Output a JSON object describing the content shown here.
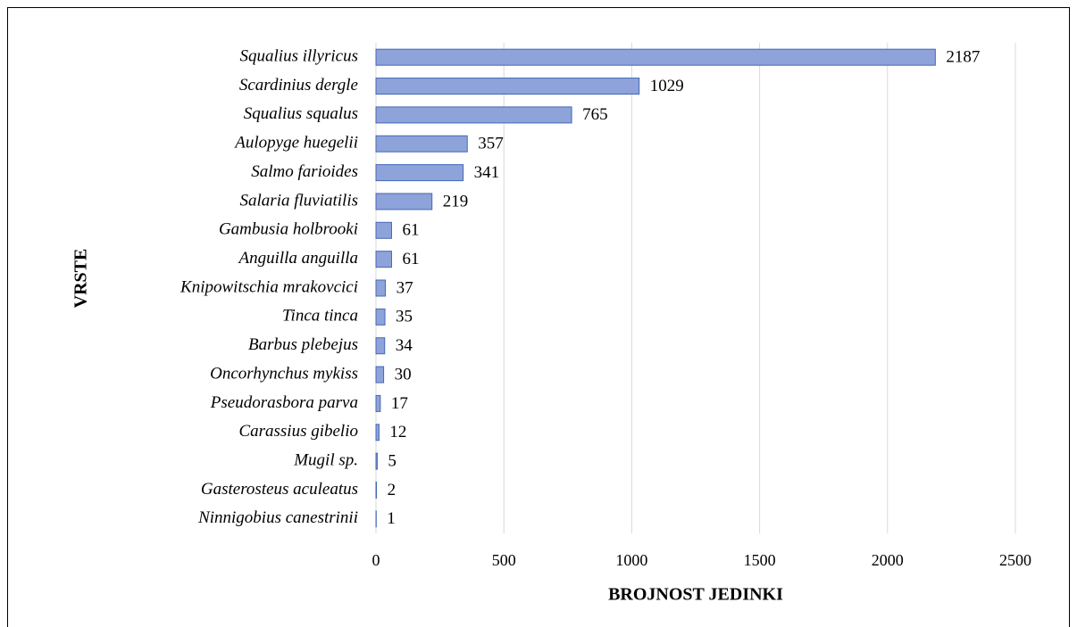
{
  "chart_data": {
    "type": "bar",
    "orientation": "horizontal",
    "x_label": "BROJNOST JEDINKI",
    "y_label": "VRSTE",
    "categories": [
      "Squalius illyricus",
      "Scardinius dergle",
      "Squalius squalus",
      "Aulopyge huegelii",
      "Salmo farioides",
      "Salaria fluviatilis",
      "Gambusia holbrooki",
      "Anguilla anguilla",
      "Knipowitschia mrakovcici",
      "Tinca tinca",
      "Barbus plebejus",
      "Oncorhynchus mykiss",
      "Pseudorasbora parva",
      "Carassius gibelio",
      "Mugil sp.",
      "Gasterosteus aculeatus",
      "Ninnigobius canestrinii"
    ],
    "values": [
      2187,
      1029,
      765,
      357,
      341,
      219,
      61,
      61,
      37,
      35,
      34,
      30,
      17,
      12,
      5,
      2,
      1
    ],
    "color": "#8ea3d9",
    "xlim": [
      0,
      2500
    ],
    "xticks": [
      0,
      500,
      1000,
      1500,
      2000,
      2500
    ],
    "grid": true
  }
}
